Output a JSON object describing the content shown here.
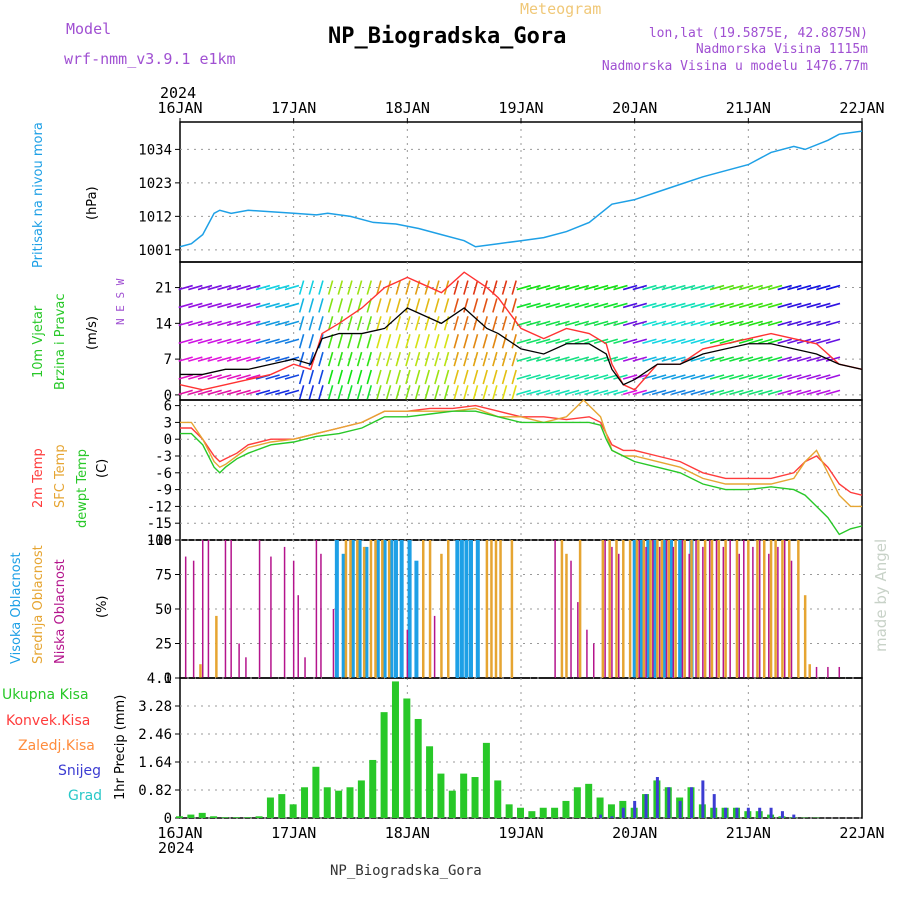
{
  "header": {
    "model_label": "Model",
    "model_name": "wrf-nmm_v3.9.1 e1km",
    "product": "Meteogram",
    "station": "NP_Biogradska_Gora",
    "lonlat": "lon,lat (19.5875E, 42.8875N)",
    "elevation": "Nadmorska Visina 1115m",
    "model_elevation": "Nadmorska Visina u modelu 1476.77m",
    "year_top": "2024",
    "year_bottom": "2024",
    "footer_station": "NP_Biogradska_Gora",
    "credit": "made by Angel"
  },
  "colors": {
    "pressure": "#1ea0e6",
    "wind_speed": "#000000",
    "gust": "#ff3232",
    "t2m": "#ff3c3c",
    "tsfc": "#e6a532",
    "dewpoint": "#28c828",
    "high_cloud": "#1ea0e6",
    "mid_cloud": "#e6a532",
    "low_cloud": "#b4148c",
    "total_precip": "#28c828",
    "conv_precip": "#ff3c3c",
    "snow": "#3c3cd2",
    "graupel": "#28c8c8",
    "panel_label_magenta": "#a050d2",
    "product_orange": "#f0c878",
    "credit": "#c8d2c8"
  },
  "chart_data": [
    {
      "panel": "pressure",
      "type": "line",
      "ylabel": [
        "Pritisak na nivou mora",
        "(hPa)"
      ],
      "ylim": [
        997,
        1043
      ],
      "yticks": [
        1001,
        1012,
        1023,
        1034
      ],
      "x_unit": "days since 16JAN 00UTC",
      "xticks": [
        "16JAN",
        "17JAN",
        "18JAN",
        "19JAN",
        "20JAN",
        "21JAN",
        "22JAN"
      ],
      "series": [
        {
          "name": "MSLP",
          "x": [
            0,
            0.1,
            0.2,
            0.3,
            0.35,
            0.45,
            0.6,
            0.8,
            1.0,
            1.2,
            1.3,
            1.5,
            1.7,
            1.9,
            2.1,
            2.3,
            2.5,
            2.6,
            2.8,
            3.0,
            3.2,
            3.4,
            3.6,
            3.8,
            4.0,
            4.2,
            4.4,
            4.6,
            4.8,
            5.0,
            5.2,
            5.4,
            5.5,
            5.7,
            5.8,
            6.0
          ],
          "y": [
            1002,
            1003,
            1006,
            1013,
            1014,
            1013,
            1014,
            1013.5,
            1013,
            1012.5,
            1013,
            1012,
            1010,
            1009.5,
            1008,
            1006,
            1004,
            1002,
            1003,
            1004,
            1005,
            1007,
            1010,
            1016,
            1017.5,
            1020,
            1022.5,
            1025,
            1027,
            1029,
            1033,
            1035,
            1034,
            1037,
            1039,
            1040
          ]
        }
      ]
    },
    {
      "panel": "wind",
      "type": "line",
      "ylabel": [
        "10m Vjetar",
        "Brzina i Pravac",
        "(m/s)"
      ],
      "ylim": [
        -1,
        26
      ],
      "yticks": [
        0,
        7,
        14,
        21
      ],
      "direction_legend": "N E S W",
      "series": [
        {
          "name": "speed",
          "x": [
            0,
            0.2,
            0.4,
            0.6,
            0.8,
            1.0,
            1.15,
            1.25,
            1.4,
            1.6,
            1.8,
            2.0,
            2.1,
            2.3,
            2.5,
            2.7,
            2.8,
            3.0,
            3.2,
            3.4,
            3.6,
            3.75,
            3.8,
            3.9,
            4.0,
            4.2,
            4.4,
            4.6,
            4.8,
            5.0,
            5.2,
            5.4,
            5.6,
            5.8,
            6.0
          ],
          "y": [
            4,
            4,
            5,
            5,
            6,
            7,
            6,
            11,
            12,
            12,
            13,
            17,
            16,
            14,
            17,
            13,
            12,
            9,
            8,
            10,
            10,
            8,
            5,
            2,
            3,
            6,
            6,
            8,
            9,
            10,
            10,
            9,
            8,
            6,
            5
          ]
        },
        {
          "name": "gust",
          "x": [
            0,
            0.2,
            0.4,
            0.6,
            0.8,
            1.0,
            1.15,
            1.25,
            1.4,
            1.6,
            1.8,
            2.0,
            2.1,
            2.3,
            2.5,
            2.7,
            2.8,
            3.0,
            3.2,
            3.4,
            3.6,
            3.75,
            3.8,
            3.9,
            4.0,
            4.2,
            4.4,
            4.6,
            4.8,
            5.0,
            5.2,
            5.4,
            5.6,
            5.8,
            6.0
          ],
          "y": [
            2,
            1,
            2,
            3,
            4,
            6,
            5,
            12,
            14,
            17,
            21,
            23,
            22,
            20,
            24,
            21,
            19,
            13,
            11,
            13,
            12,
            10,
            6,
            2,
            1,
            6,
            6,
            9,
            10,
            11,
            12,
            11,
            10,
            6,
            5
          ]
        }
      ]
    },
    {
      "panel": "temperature",
      "type": "line",
      "ylabel": [
        "2m Temp",
        "SFC Temp",
        "dewpt Temp",
        "(C)"
      ],
      "ylim": [
        -18,
        7
      ],
      "yticks": [
        -18,
        -15,
        -12,
        -9,
        -6,
        -3,
        0,
        3,
        6
      ],
      "series": [
        {
          "name": "2m Temp",
          "x": [
            0,
            0.1,
            0.2,
            0.3,
            0.35,
            0.4,
            0.5,
            0.6,
            0.8,
            1.0,
            1.2,
            1.4,
            1.6,
            1.8,
            2.0,
            2.2,
            2.4,
            2.6,
            2.8,
            3.0,
            3.2,
            3.4,
            3.6,
            3.7,
            3.75,
            3.8,
            3.9,
            4.0,
            4.2,
            4.4,
            4.6,
            4.8,
            5.0,
            5.2,
            5.4,
            5.5,
            5.6,
            5.7,
            5.8,
            5.9,
            6.0
          ],
          "y": [
            2,
            2,
            0,
            -3,
            -4,
            -3.5,
            -2.5,
            -1,
            0,
            0,
            1,
            2,
            3,
            5,
            5,
            5.5,
            5.5,
            6,
            5,
            4,
            4,
            3.5,
            4,
            3,
            1,
            -1,
            -2,
            -2,
            -3,
            -4,
            -6,
            -7,
            -7,
            -7,
            -6,
            -4,
            -3,
            -5,
            -8,
            -9.5,
            -10
          ]
        },
        {
          "name": "SFC Temp",
          "x": [
            0,
            0.1,
            0.2,
            0.3,
            0.35,
            0.4,
            0.5,
            0.6,
            0.8,
            1.0,
            1.2,
            1.4,
            1.6,
            1.8,
            2.0,
            2.2,
            2.4,
            2.6,
            2.8,
            3.0,
            3.2,
            3.4,
            3.5,
            3.55,
            3.6,
            3.7,
            3.75,
            3.8,
            3.9,
            4.0,
            4.2,
            4.4,
            4.6,
            4.8,
            5.0,
            5.2,
            5.4,
            5.5,
            5.6,
            5.7,
            5.8,
            5.9,
            6.0
          ],
          "y": [
            3,
            3,
            0,
            -4,
            -5,
            -4.5,
            -3,
            -1.5,
            -0.5,
            0,
            1,
            2,
            3,
            5,
            5,
            5,
            5,
            5.5,
            4,
            4,
            3,
            4,
            6,
            7,
            6,
            4,
            1,
            -2,
            -3,
            -3,
            -4,
            -5,
            -7,
            -8,
            -8,
            -8,
            -7,
            -4,
            -2,
            -6,
            -10,
            -12,
            -12
          ]
        },
        {
          "name": "dewpt Temp",
          "x": [
            0,
            0.1,
            0.2,
            0.3,
            0.35,
            0.4,
            0.5,
            0.6,
            0.8,
            1.0,
            1.2,
            1.4,
            1.6,
            1.8,
            2.0,
            2.2,
            2.4,
            2.6,
            2.8,
            3.0,
            3.2,
            3.4,
            3.6,
            3.7,
            3.75,
            3.8,
            3.9,
            4.0,
            4.2,
            4.4,
            4.6,
            4.8,
            5.0,
            5.2,
            5.4,
            5.5,
            5.6,
            5.7,
            5.8,
            5.9,
            6.0
          ],
          "y": [
            1,
            1,
            -1,
            -5,
            -6,
            -5,
            -3.5,
            -2.5,
            -1,
            -0.5,
            0.5,
            1,
            2,
            4,
            4,
            4.5,
            5,
            5,
            4,
            3,
            3,
            3,
            3,
            2.5,
            0,
            -2,
            -3,
            -4,
            -5,
            -6,
            -8,
            -9,
            -9,
            -8.5,
            -9,
            -10,
            -12,
            -14,
            -17,
            -16,
            -15.5
          ]
        }
      ]
    },
    {
      "panel": "cloud",
      "type": "bar",
      "ylabel": [
        "Visoka Oblacnost",
        "Srednja Oblacnost",
        "Niska Oblacnost",
        "(%)"
      ],
      "ylim": [
        0,
        100
      ],
      "yticks": [
        0,
        25,
        50,
        75,
        100
      ],
      "series": [
        {
          "name": "Visoka Oblacnost",
          "x": [
            1.38,
            1.44,
            1.52,
            1.58,
            1.64,
            1.74,
            1.8,
            1.86,
            1.9,
            1.95,
            2.02,
            2.08,
            2.44,
            2.48,
            2.52,
            2.56,
            2.62,
            4.0,
            4.06,
            4.12,
            4.18,
            4.26,
            4.32,
            4.4,
            4.5
          ],
          "y": [
            100,
            90,
            100,
            100,
            95,
            100,
            100,
            100,
            100,
            100,
            100,
            85,
            100,
            100,
            100,
            100,
            100,
            100,
            100,
            100,
            100,
            100,
            100,
            100,
            100
          ]
        },
        {
          "name": "Srednja Oblacnost",
          "x": [
            0.18,
            0.32,
            1.46,
            1.5,
            1.56,
            1.62,
            1.68,
            1.72,
            1.78,
            1.84,
            2.14,
            2.2,
            2.3,
            2.36,
            2.7,
            2.74,
            2.78,
            2.82,
            2.92,
            3.36,
            3.4,
            3.52,
            3.72,
            3.78,
            3.84,
            3.9,
            3.96,
            4.02,
            4.08,
            4.14,
            4.2,
            4.24,
            4.3,
            4.36,
            4.44,
            4.5,
            4.56,
            4.62,
            4.68,
            4.74,
            4.8,
            4.9,
            5.0,
            5.08,
            5.14,
            5.2,
            5.24,
            5.3,
            5.36,
            5.44,
            5.5,
            5.54
          ],
          "y": [
            10,
            45,
            100,
            100,
            100,
            95,
            100,
            100,
            100,
            100,
            100,
            100,
            90,
            100,
            100,
            100,
            100,
            100,
            100,
            100,
            90,
            100,
            100,
            100,
            100,
            100,
            100,
            100,
            100,
            100,
            100,
            100,
            100,
            100,
            100,
            100,
            100,
            100,
            100,
            100,
            100,
            100,
            100,
            100,
            100,
            100,
            100,
            100,
            100,
            100,
            60,
            10
          ]
        },
        {
          "name": "Niska Oblacnost",
          "x": [
            0.05,
            0.12,
            0.2,
            0.25,
            0.4,
            0.45,
            0.52,
            0.58,
            0.7,
            0.8,
            0.92,
            1.0,
            1.04,
            1.1,
            1.2,
            1.24,
            1.35,
            2.0,
            2.24,
            3.3,
            3.44,
            3.5,
            3.58,
            3.64,
            3.74,
            3.8,
            3.86,
            4.04,
            4.1,
            4.16,
            4.22,
            4.28,
            4.34,
            4.42,
            4.48,
            4.54,
            4.6,
            4.66,
            4.72,
            4.78,
            4.84,
            4.92,
            4.96,
            5.04,
            5.1,
            5.18,
            5.26,
            5.32,
            5.38,
            5.6,
            5.7,
            5.8
          ],
          "y": [
            88,
            85,
            100,
            100,
            100,
            100,
            25,
            15,
            100,
            88,
            95,
            85,
            60,
            15,
            100,
            90,
            50,
            35,
            45,
            100,
            85,
            55,
            35,
            25,
            100,
            95,
            90,
            100,
            95,
            100,
            95,
            100,
            95,
            100,
            90,
            100,
            95,
            100,
            100,
            95,
            100,
            90,
            100,
            95,
            100,
            90,
            95,
            100,
            85,
            8,
            8,
            8
          ]
        }
      ]
    },
    {
      "panel": "precip",
      "type": "bar",
      "ylabel": [
        "1hr Precip (mm)"
      ],
      "legend": [
        "Ukupna Kisa",
        "Konvek.Kisa",
        "Zaledj.Kisa",
        "Snijeg",
        "Grad"
      ],
      "ylim": [
        0,
        4.1
      ],
      "yticks": [
        0,
        0.82,
        1.64,
        2.46,
        3.28,
        4.1
      ],
      "series": [
        {
          "name": "Ukupna Kisa",
          "x": [
            0.0,
            0.1,
            0.2,
            0.3,
            0.4,
            0.5,
            0.6,
            0.7,
            0.8,
            0.9,
            1.0,
            1.1,
            1.2,
            1.3,
            1.4,
            1.5,
            1.6,
            1.7,
            1.8,
            1.9,
            2.0,
            2.1,
            2.2,
            2.3,
            2.4,
            2.5,
            2.6,
            2.7,
            2.8,
            2.9,
            3.0,
            3.1,
            3.2,
            3.3,
            3.4,
            3.5,
            3.6,
            3.7,
            3.8,
            3.9,
            4.0,
            4.1,
            4.2,
            4.3,
            4.4,
            4.5,
            4.6,
            4.7,
            4.8,
            4.9,
            5.0,
            5.1,
            5.2,
            5.3,
            5.4,
            5.5,
            5.6,
            5.7,
            5.8,
            5.9,
            6.0
          ],
          "y": [
            0.05,
            0.1,
            0.15,
            0.05,
            0.02,
            0.02,
            0.02,
            0.05,
            0.6,
            0.7,
            0.4,
            0.9,
            1.5,
            0.9,
            0.8,
            0.9,
            1.1,
            1.7,
            3.1,
            4.0,
            3.5,
            2.9,
            2.1,
            1.3,
            0.8,
            1.3,
            1.2,
            2.2,
            1.1,
            0.4,
            0.3,
            0.2,
            0.3,
            0.3,
            0.5,
            0.9,
            1.0,
            0.6,
            0.4,
            0.5,
            0.3,
            0.7,
            1.1,
            0.9,
            0.6,
            0.9,
            0.4,
            0.3,
            0.3,
            0.3,
            0.2,
            0.2,
            0.1,
            0.05,
            0.02,
            0.01,
            0.01,
            0.0,
            0.0,
            0.0,
            0.0
          ]
        },
        {
          "name": "Snijeg",
          "x": [
            3.7,
            3.8,
            3.9,
            4.0,
            4.1,
            4.2,
            4.3,
            4.4,
            4.5,
            4.6,
            4.7,
            4.8,
            4.9,
            5.0,
            5.1,
            5.2,
            5.3,
            5.4
          ],
          "y": [
            0.1,
            0.05,
            0.3,
            0.5,
            0.7,
            1.2,
            0.9,
            0.5,
            0.9,
            1.1,
            0.7,
            0.3,
            0.3,
            0.3,
            0.3,
            0.3,
            0.2,
            0.1
          ]
        }
      ]
    }
  ]
}
